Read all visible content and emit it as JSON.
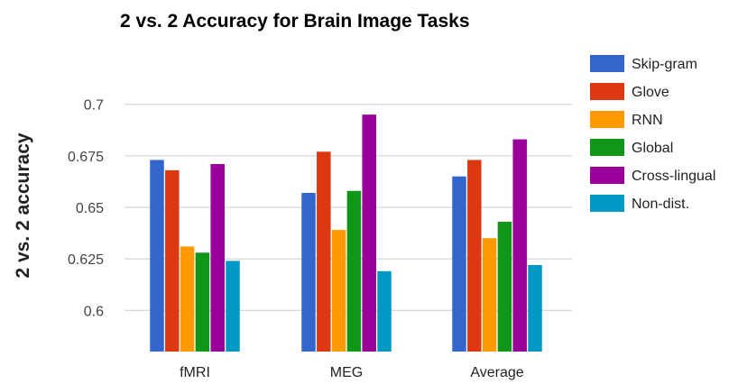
{
  "chart_data": {
    "type": "bar",
    "title": "2 vs. 2 Accuracy for Brain Image Tasks",
    "xlabel": "",
    "ylabel": "2 vs. 2 accuracy",
    "ylim": [
      0.58,
      0.72
    ],
    "yticks": [
      "0.6",
      "0.625",
      "0.65",
      "0.675",
      "0.7"
    ],
    "grid": true,
    "legend_position": "right",
    "categories": [
      "fMRI",
      "MEG",
      "Average"
    ],
    "series": [
      {
        "name": "Skip-gram",
        "color": "#3366cc",
        "values": [
          0.673,
          0.657,
          0.665
        ]
      },
      {
        "name": "Glove",
        "color": "#dc3912",
        "values": [
          0.668,
          0.677,
          0.673
        ]
      },
      {
        "name": "RNN",
        "color": "#ff9900",
        "values": [
          0.631,
          0.639,
          0.635
        ]
      },
      {
        "name": "Global",
        "color": "#109618",
        "values": [
          0.628,
          0.658,
          0.643
        ]
      },
      {
        "name": "Cross-lingual",
        "color": "#990099",
        "values": [
          0.671,
          0.695,
          0.683
        ]
      },
      {
        "name": "Non-dist.",
        "color": "#0099c6",
        "values": [
          0.624,
          0.619,
          0.622
        ]
      }
    ]
  }
}
